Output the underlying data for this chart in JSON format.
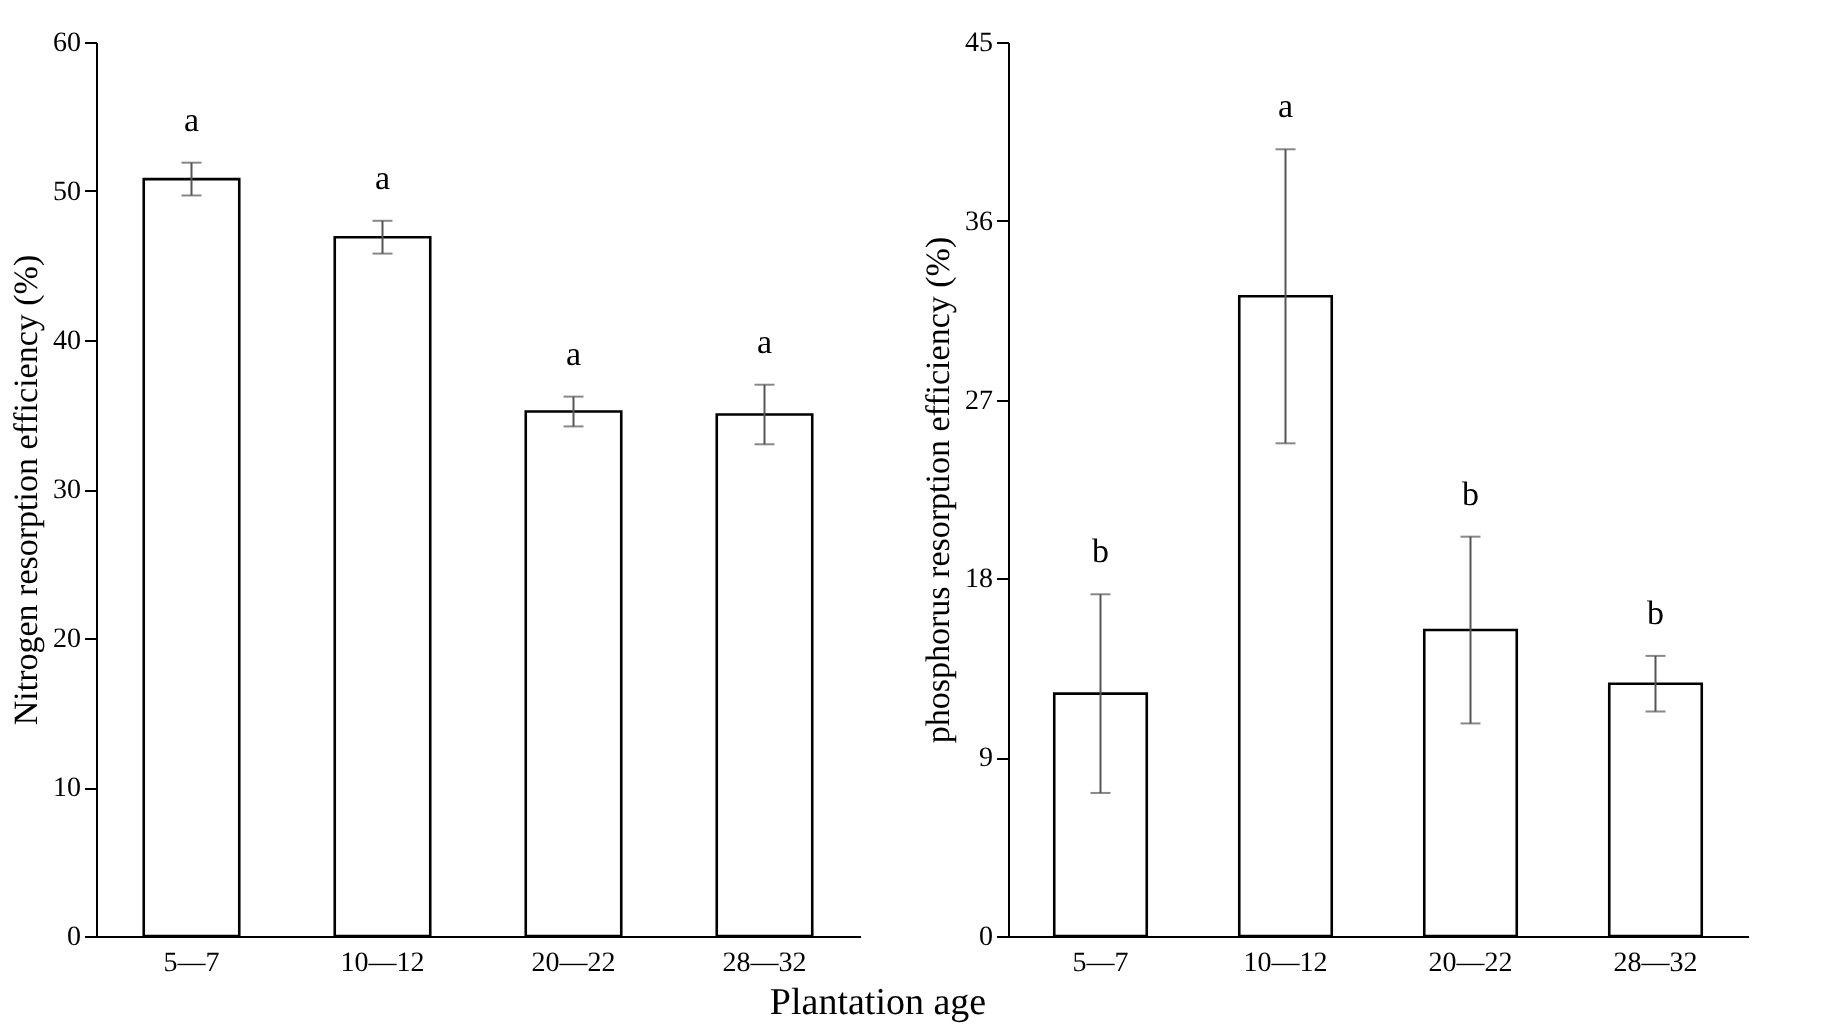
{
  "chart_data": [
    {
      "type": "bar",
      "xlabel": "Plantation age",
      "ylabel": "Nitrogen resorption efficiency (%)",
      "categories": [
        "5—7",
        "10—12",
        "20—22",
        "28—32"
      ],
      "values": [
        50.8,
        46.9,
        35.2,
        35.0
      ],
      "errors": [
        1.1,
        1.1,
        1.0,
        2.0
      ],
      "color": "#ffffff",
      "ylim": [
        0,
        60
      ],
      "yticks": [
        0,
        10,
        20,
        30,
        40,
        50,
        60
      ],
      "grid": false,
      "annotations": [
        "a",
        "a",
        "a",
        "a"
      ]
    },
    {
      "type": "bar",
      "ylabel": "phosphorus resorption efficiency (%)",
      "categories": [
        "5—7",
        "10—12",
        "20—22",
        "28—32"
      ],
      "values": [
        12.2,
        32.2,
        15.4,
        12.7
      ],
      "errors": [
        5.0,
        7.4,
        4.7,
        1.4
      ],
      "color": "#ffffff",
      "ylim": [
        0,
        45
      ],
      "yticks": [
        0,
        9,
        18,
        27,
        36,
        45
      ],
      "grid": false,
      "annotations": [
        "b",
        "a",
        "b",
        "b"
      ]
    }
  ]
}
